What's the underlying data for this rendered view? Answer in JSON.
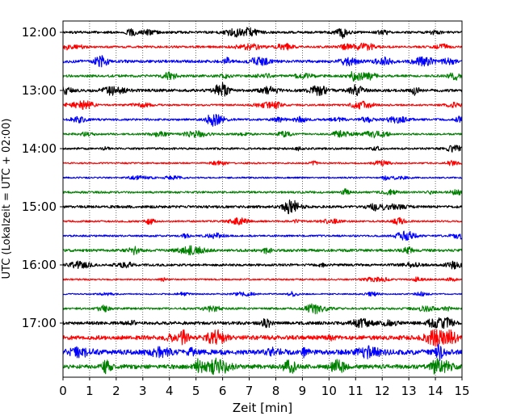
{
  "chart_data": {
    "type": "line",
    "title": "",
    "xlabel": "Zeit  [min]",
    "ylabel": "UTC (Lokalzeit = UTC + 02:00)",
    "xlim": [
      0,
      15
    ],
    "x_ticks": [
      0,
      1,
      2,
      3,
      4,
      5,
      6,
      7,
      8,
      9,
      10,
      11,
      12,
      13,
      14,
      15
    ],
    "x_tick_labels": [
      "0",
      "1",
      "2",
      "3",
      "4",
      "5",
      "6",
      "7",
      "8",
      "9",
      "10",
      "11",
      "12",
      "13",
      "14",
      "15"
    ],
    "y_tick_labels": [
      "12:00",
      "13:00",
      "14:00",
      "15:00",
      "16:00",
      "17:00"
    ],
    "y_tick_indices": [
      0,
      4,
      8,
      12,
      16,
      20
    ],
    "vertical_grid": true,
    "grid_style": "dotted",
    "legend": "none",
    "color_cycle": [
      "#000000",
      "#ff0000",
      "#0000ff",
      "#008000"
    ],
    "series": [
      {
        "start": "12:00",
        "amplitude": 0.9
      },
      {
        "start": "12:15",
        "amplitude": 0.8
      },
      {
        "start": "12:30",
        "amplitude": 1.1
      },
      {
        "start": "12:45",
        "amplitude": 0.9
      },
      {
        "start": "13:00",
        "amplitude": 1.1
      },
      {
        "start": "13:15",
        "amplitude": 0.7
      },
      {
        "start": "13:30",
        "amplitude": 0.8
      },
      {
        "start": "13:45",
        "amplitude": 0.7
      },
      {
        "start": "14:00",
        "amplitude": 0.8
      },
      {
        "start": "14:15",
        "amplitude": 0.6
      },
      {
        "start": "14:30",
        "amplitude": 0.6
      },
      {
        "start": "14:45",
        "amplitude": 0.8
      },
      {
        "start": "15:00",
        "amplitude": 1.0
      },
      {
        "start": "15:15",
        "amplitude": 0.7
      },
      {
        "start": "15:30",
        "amplitude": 0.7
      },
      {
        "start": "15:45",
        "amplitude": 1.0
      },
      {
        "start": "16:00",
        "amplitude": 0.9
      },
      {
        "start": "16:15",
        "amplitude": 0.6
      },
      {
        "start": "16:30",
        "amplitude": 0.5
      },
      {
        "start": "16:45",
        "amplitude": 0.8
      },
      {
        "start": "17:00",
        "amplitude": 1.2
      },
      {
        "start": "17:15",
        "amplitude": 1.6
      },
      {
        "start": "17:30",
        "amplitude": 1.9
      },
      {
        "start": "17:45",
        "amplitude": 1.6
      }
    ]
  }
}
